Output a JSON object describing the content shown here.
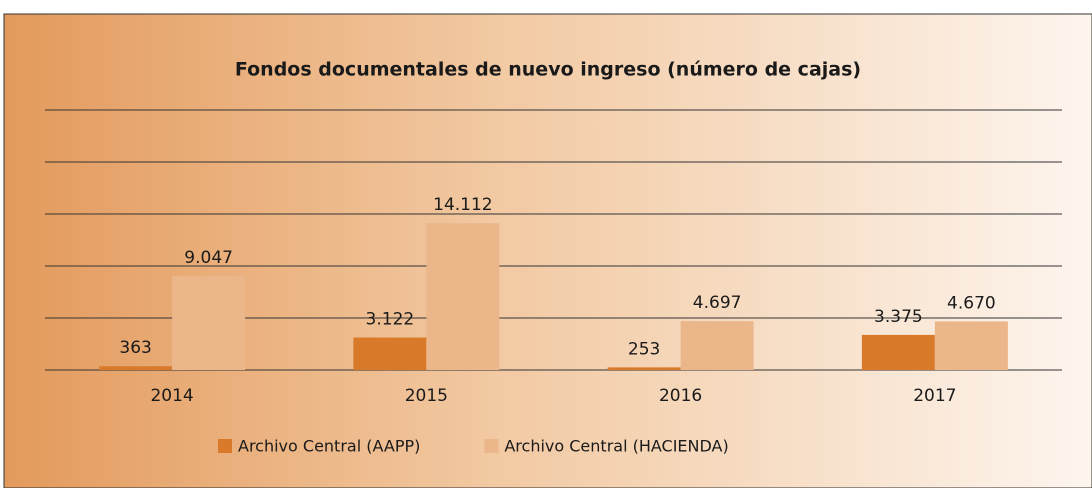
{
  "chart_data": {
    "type": "bar",
    "title": "Fondos documentales de nuevo ingreso (número de cajas)",
    "categories": [
      "2014",
      "2015",
      "2016",
      "2017"
    ],
    "series": [
      {
        "name": "Archivo Central (AAPP)",
        "color": "#d97a2b",
        "values": [
          363,
          3122,
          253,
          3375
        ],
        "value_labels": [
          "363",
          "3.122",
          "253",
          "3.375"
        ]
      },
      {
        "name": "Archivo Central (HACIENDA)",
        "color": "#eab68a",
        "values": [
          9047,
          14112,
          4697,
          4670
        ],
        "value_labels": [
          "9.047",
          "14.112",
          "4.697",
          "4.670"
        ]
      }
    ],
    "ylim": [
      0,
      25000
    ],
    "yticks": [
      0,
      5000,
      10000,
      15000,
      20000,
      25000
    ],
    "grid": true
  }
}
